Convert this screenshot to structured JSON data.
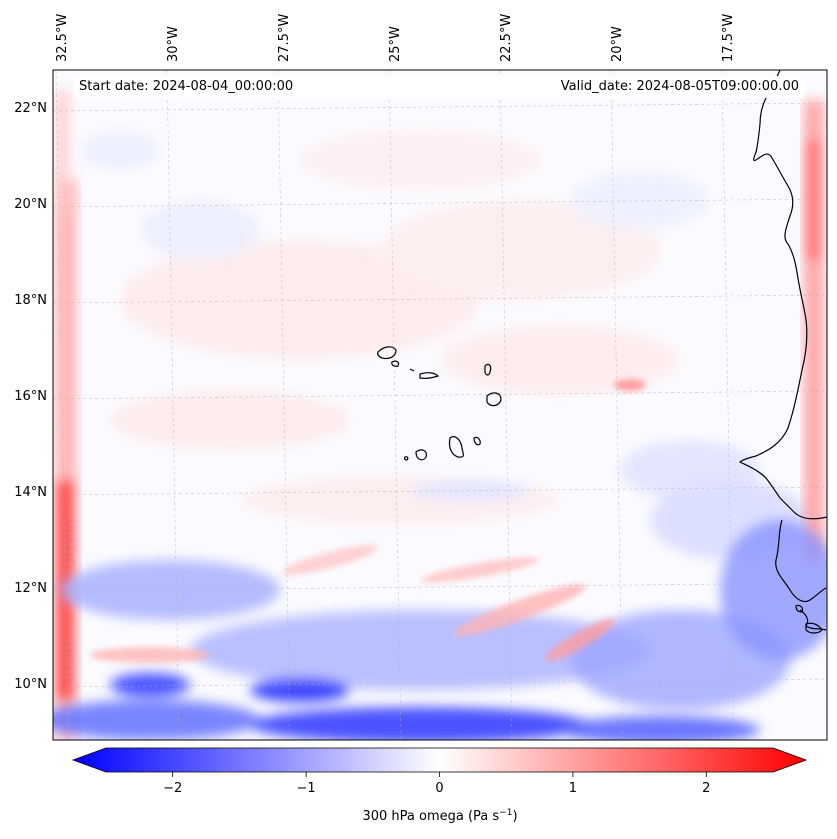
{
  "map": {
    "start_date_text": "Start date: 2024-08-04_00:00:00",
    "valid_date_text": "Valid_date: 2024-08-05T09:00:00.00",
    "lon_ticks": [
      {
        "value": -32.5,
        "label": "32.5°W"
      },
      {
        "value": -30.0,
        "label": "30°W"
      },
      {
        "value": -27.5,
        "label": "27.5°W"
      },
      {
        "value": -25.0,
        "label": "25°W"
      },
      {
        "value": -22.5,
        "label": "22.5°W"
      },
      {
        "value": -20.0,
        "label": "20°W"
      },
      {
        "value": -17.5,
        "label": "17.5°W"
      }
    ],
    "lat_ticks": [
      {
        "value": 22,
        "label": "22°N"
      },
      {
        "value": 20,
        "label": "20°N"
      },
      {
        "value": 18,
        "label": "18°N"
      },
      {
        "value": 16,
        "label": "16°N"
      },
      {
        "value": 14,
        "label": "14°N"
      },
      {
        "value": 12,
        "label": "12°N"
      },
      {
        "value": 10,
        "label": "10°N"
      }
    ],
    "colors": {
      "negative": "#0000ff",
      "neutral": "#ffffff",
      "positive": "#ff0000",
      "coast": "#000000",
      "grid": "#b0b0b0"
    }
  },
  "colorbar": {
    "label_main": "300 hPa omega (Pa s",
    "label_exp": "−1",
    "label_end": ")",
    "ticks": [
      {
        "value": -2,
        "label": "−2"
      },
      {
        "value": -1,
        "label": "−1"
      },
      {
        "value": 0,
        "label": "0"
      },
      {
        "value": 1,
        "label": "1"
      },
      {
        "value": 2,
        "label": "2"
      }
    ],
    "range": [
      -2.6,
      2.6
    ]
  }
}
